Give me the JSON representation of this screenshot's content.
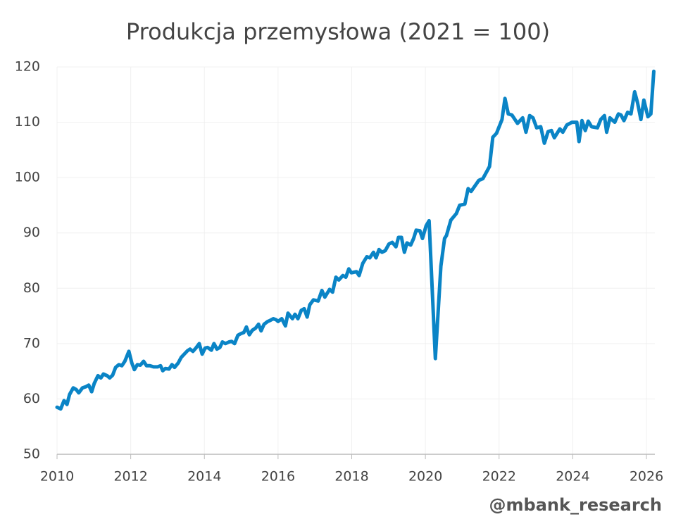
{
  "chart_data": {
    "type": "line",
    "title": "Produkcja przemysłowa (2021 = 100)",
    "watermark": "@mbank_research",
    "x": [
      2010.0,
      2010.1,
      2010.19,
      2010.27,
      2010.34,
      2010.44,
      2010.52,
      2010.59,
      2010.69,
      2010.78,
      2010.86,
      2010.94,
      2011.01,
      2011.11,
      2011.19,
      2011.26,
      2011.36,
      2011.43,
      2011.51,
      2011.59,
      2011.68,
      2011.76,
      2011.84,
      2011.95,
      2012.03,
      2012.1,
      2012.18,
      2012.26,
      2012.35,
      2012.43,
      2012.52,
      2012.62,
      2012.73,
      2012.81,
      2012.87,
      2012.94,
      2013.04,
      2013.12,
      2013.19,
      2013.29,
      2013.37,
      2013.44,
      2013.54,
      2013.61,
      2013.69,
      2013.77,
      2013.86,
      2013.94,
      2014.02,
      2014.09,
      2014.19,
      2014.26,
      2014.34,
      2014.42,
      2014.49,
      2014.57,
      2014.67,
      2014.74,
      2014.82,
      2014.91,
      2014.99,
      2015.07,
      2015.14,
      2015.22,
      2015.3,
      2015.39,
      2015.47,
      2015.54,
      2015.62,
      2015.72,
      2015.79,
      2015.87,
      2015.95,
      2016.0,
      2016.1,
      2016.2,
      2016.27,
      2016.39,
      2016.46,
      2016.54,
      2016.63,
      2016.71,
      2016.79,
      2016.86,
      2016.96,
      2017.09,
      2017.19,
      2017.27,
      2017.4,
      2017.48,
      2017.57,
      2017.65,
      2017.76,
      2017.84,
      2017.92,
      2017.99,
      2018.13,
      2018.2,
      2018.3,
      2018.41,
      2018.49,
      2018.59,
      2018.66,
      2018.74,
      2018.82,
      2018.91,
      2019.01,
      2019.1,
      2019.2,
      2019.27,
      2019.35,
      2019.43,
      2019.5,
      2019.6,
      2019.68,
      2019.75,
      2019.85,
      2019.92,
      2020.02,
      2020.1,
      2020.27,
      2020.42,
      2020.52,
      2020.57,
      2020.69,
      2020.84,
      2020.93,
      2021.07,
      2021.16,
      2021.24,
      2021.45,
      2021.56,
      2021.74,
      2021.83,
      2021.93,
      2022.08,
      2022.16,
      2022.25,
      2022.35,
      2022.5,
      2022.64,
      2022.73,
      2022.83,
      2022.92,
      2023.02,
      2023.13,
      2023.23,
      2023.33,
      2023.42,
      2023.5,
      2023.65,
      2023.73,
      2023.84,
      2023.98,
      2024.11,
      2024.17,
      2024.25,
      2024.34,
      2024.42,
      2024.51,
      2024.67,
      2024.76,
      2024.86,
      2024.92,
      2025.01,
      2025.14,
      2025.24,
      2025.31,
      2025.39,
      2025.49,
      2025.58,
      2025.68,
      2025.76,
      2025.85,
      2025.93,
      2026.04,
      2026.12,
      2026.2
    ],
    "series": [
      {
        "color": "#0a84c6",
        "values": [
          58.5,
          58.2,
          59.7,
          59.0,
          60.8,
          62.0,
          61.7,
          61.1,
          62.0,
          62.2,
          62.5,
          61.3,
          62.8,
          64.2,
          63.8,
          64.5,
          64.2,
          63.8,
          64.3,
          65.7,
          66.2,
          66.0,
          66.8,
          68.6,
          66.5,
          65.3,
          66.2,
          66.1,
          66.8,
          66.0,
          66.0,
          65.8,
          65.8,
          66.0,
          65.1,
          65.5,
          65.4,
          66.2,
          65.7,
          66.5,
          67.5,
          68.0,
          68.7,
          69.0,
          68.6,
          69.2,
          70.0,
          68.1,
          69.2,
          69.3,
          68.8,
          70.0,
          69.0,
          69.3,
          70.3,
          70.0,
          70.3,
          70.4,
          70.0,
          71.5,
          71.8,
          72.0,
          73.0,
          71.6,
          72.4,
          72.8,
          73.5,
          72.3,
          73.5,
          74.0,
          74.2,
          74.5,
          74.3,
          74.0,
          74.5,
          73.2,
          75.5,
          74.5,
          75.3,
          74.5,
          76.0,
          76.3,
          74.8,
          77.0,
          77.9,
          77.7,
          79.6,
          78.4,
          79.8,
          79.3,
          82.0,
          81.5,
          82.3,
          82.0,
          83.5,
          82.8,
          83.0,
          82.3,
          84.5,
          85.7,
          85.5,
          86.5,
          85.5,
          87.0,
          86.5,
          86.8,
          88.0,
          88.3,
          87.5,
          89.2,
          89.2,
          86.5,
          88.2,
          87.8,
          89.0,
          90.5,
          90.4,
          89.0,
          91.3,
          92.2,
          67.3,
          84.0,
          89.0,
          89.5,
          92.3,
          93.5,
          95.0,
          95.2,
          98.0,
          97.5,
          99.5,
          99.8,
          102.0,
          107.3,
          108.0,
          110.5,
          114.3,
          111.5,
          111.3,
          109.8,
          110.8,
          108.2,
          111.2,
          110.8,
          109.0,
          109.2,
          106.2,
          108.3,
          108.5,
          107.2,
          108.8,
          108.2,
          109.5,
          110.0,
          110.0,
          106.5,
          110.3,
          108.5,
          110.2,
          109.2,
          109.0,
          110.5,
          111.2,
          108.2,
          110.8,
          110.0,
          111.5,
          111.3,
          110.3,
          111.8,
          111.5,
          115.5,
          113.5,
          110.5,
          114.0,
          111.0,
          111.5,
          119.2
        ]
      }
    ],
    "xlim": [
      2010,
      2026
    ],
    "xticks": [
      2010,
      2012,
      2014,
      2016,
      2018,
      2020,
      2022,
      2024,
      2026
    ],
    "ylim": [
      50,
      120
    ],
    "yticks": [
      50,
      60,
      70,
      80,
      90,
      100,
      110,
      120
    ],
    "grid": true
  }
}
